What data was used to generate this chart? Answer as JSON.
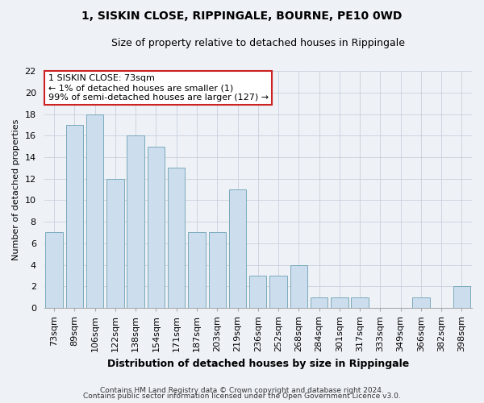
{
  "title": "1, SISKIN CLOSE, RIPPINGALE, BOURNE, PE10 0WD",
  "subtitle": "Size of property relative to detached houses in Rippingale",
  "xlabel": "Distribution of detached houses by size in Rippingale",
  "ylabel": "Number of detached properties",
  "categories": [
    "73sqm",
    "89sqm",
    "106sqm",
    "122sqm",
    "138sqm",
    "154sqm",
    "171sqm",
    "187sqm",
    "203sqm",
    "219sqm",
    "236sqm",
    "252sqm",
    "268sqm",
    "284sqm",
    "301sqm",
    "317sqm",
    "333sqm",
    "349sqm",
    "366sqm",
    "382sqm",
    "398sqm"
  ],
  "values": [
    7,
    17,
    18,
    12,
    16,
    15,
    13,
    7,
    7,
    11,
    3,
    3,
    4,
    1,
    1,
    1,
    0,
    0,
    1,
    0,
    2
  ],
  "bar_color": "#ccdded",
  "bar_edge_color": "#7aaabb",
  "annotation_text": "1 SISKIN CLOSE: 73sqm\n← 1% of detached houses are smaller (1)\n99% of semi-detached houses are larger (127) →",
  "annotation_box_facecolor": "#ffffff",
  "annotation_box_edgecolor": "#cc2222",
  "ylim": [
    0,
    22
  ],
  "yticks": [
    0,
    2,
    4,
    6,
    8,
    10,
    12,
    14,
    16,
    18,
    20,
    22
  ],
  "footer1": "Contains HM Land Registry data © Crown copyright and database right 2024.",
  "footer2": "Contains public sector information licensed under the Open Government Licence v3.0.",
  "bg_color": "#eef2f7",
  "grid_color": "#c8d0dc",
  "title_fontsize": 10,
  "subtitle_fontsize": 9,
  "xlabel_fontsize": 9,
  "ylabel_fontsize": 8,
  "tick_fontsize": 8,
  "annot_fontsize": 8,
  "footer_fontsize": 6.5
}
